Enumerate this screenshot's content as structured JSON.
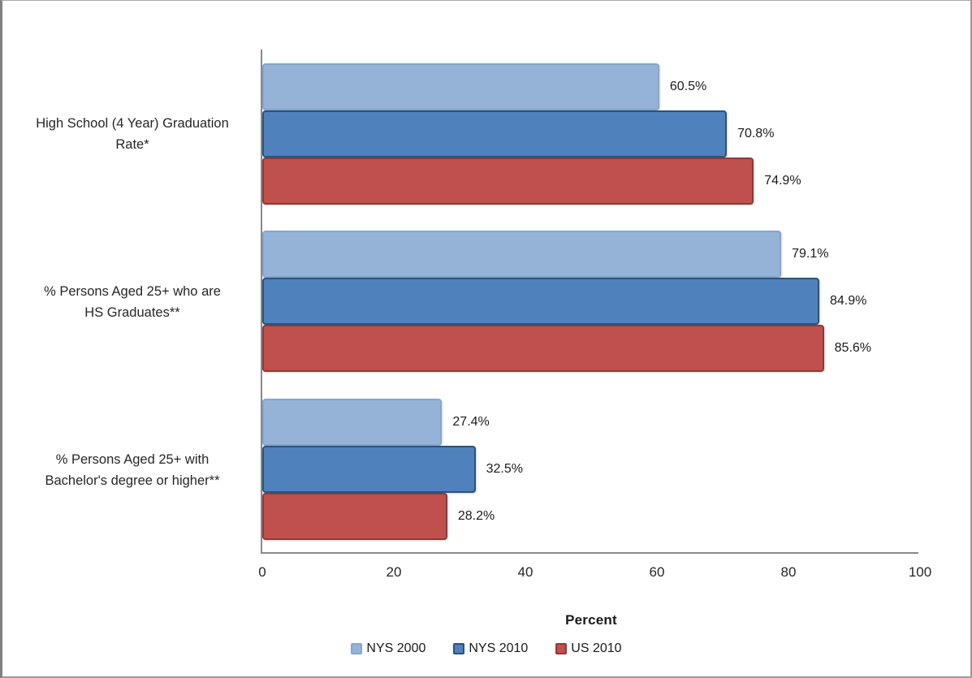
{
  "frame": {
    "background": "#ffffff",
    "border_color": "#8c8c8c"
  },
  "chart_data": {
    "type": "bar",
    "orientation": "horizontal",
    "title": "",
    "xlabel": "Percent",
    "xlim": [
      0,
      100
    ],
    "x_ticks": [
      "0",
      "20",
      "40",
      "60",
      "80",
      "100"
    ],
    "grid": false,
    "legend_position": "bottom",
    "categories": [
      "High School (4 Year) Graduation Rate*",
      "% Persons Aged 25+ who are HS Graduates**",
      "% Persons Aged 25+ with Bachelor's degree or higher**"
    ],
    "series": [
      {
        "name": "NYS 2000",
        "color": "#95b3d7",
        "border_color": "#87a5cc",
        "values": [
          60.5,
          79.1,
          27.4
        ],
        "value_labels": [
          "60.5%",
          "79.1%",
          "27.4%"
        ]
      },
      {
        "name": "NYS 2010",
        "color": "#4f81bd",
        "border_color": "#2c5379",
        "values": [
          70.8,
          84.9,
          32.5
        ],
        "value_labels": [
          "70.8%",
          "84.9%",
          "32.5%"
        ]
      },
      {
        "name": "US 2010",
        "color": "#c0504d",
        "border_color": "#8e3a37",
        "values": [
          74.9,
          85.6,
          28.2
        ],
        "value_labels": [
          "74.9%",
          "85.6%",
          "28.2%"
        ]
      }
    ]
  }
}
